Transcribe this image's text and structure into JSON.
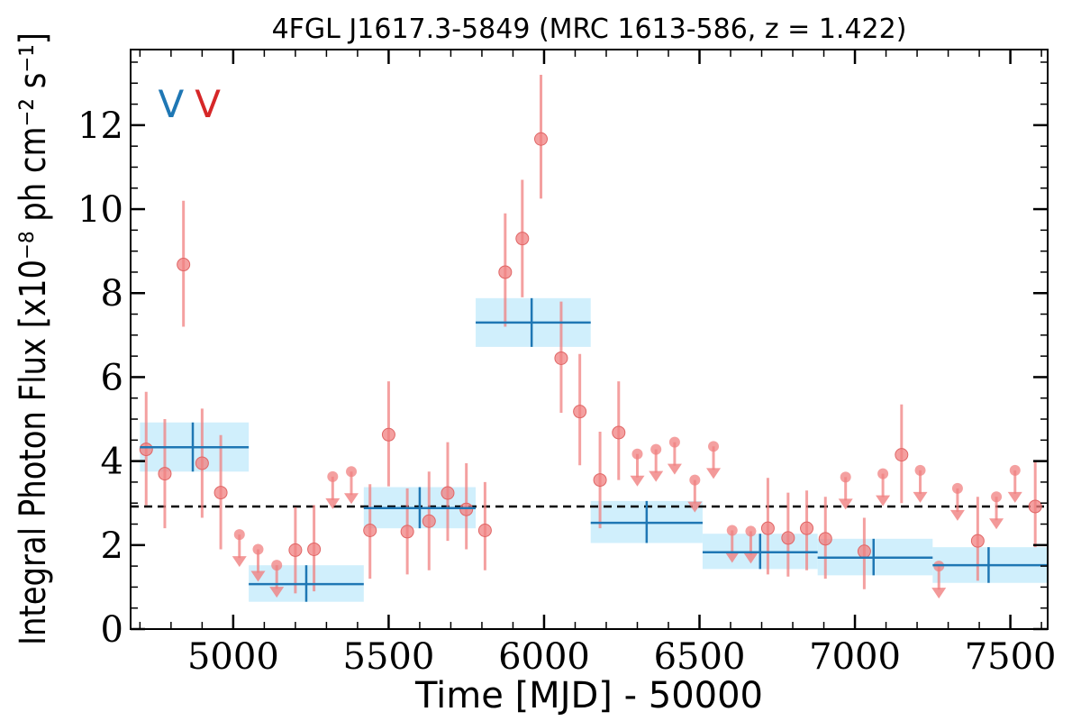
{
  "chart_data": {
    "type": "scatter",
    "title": "4FGL J1617.3-5849 (MRC 1613-586, z = 1.422)",
    "xlabel": "Time [MJD] - 50000",
    "ylabel": "Integral Photon Flux [x10⁻⁸ ph cm⁻² s⁻¹]",
    "xlim": [
      4670,
      7620
    ],
    "ylim": [
      0,
      13.8
    ],
    "xticks": [
      5000,
      5500,
      6000,
      6500,
      7000,
      7500
    ],
    "xtick_labels": [
      "5000",
      "5500",
      "6000",
      "6500",
      "7000",
      "7500"
    ],
    "yticks": [
      0,
      2,
      4,
      6,
      8,
      10,
      12
    ],
    "ytick_labels": [
      "0",
      "2",
      "4",
      "6",
      "8",
      "10",
      "12"
    ],
    "grid": false,
    "markers": [
      {
        "text": "V",
        "color": "#1f77b4",
        "x": 4800
      },
      {
        "text": "V",
        "color": "#d62728",
        "x": 4918
      }
    ],
    "reference_line": {
      "y": 2.92,
      "style": "dashed",
      "color": "#000000"
    },
    "series": [
      {
        "kind": "detections",
        "color": "#f08080",
        "points": [
          {
            "x": 4720,
            "y": 4.28,
            "lo": 2.95,
            "hi": 5.65
          },
          {
            "x": 4780,
            "y": 3.7,
            "lo": 2.4,
            "hi": 5.0
          },
          {
            "x": 4840,
            "y": 8.68,
            "lo": 7.2,
            "hi": 10.2
          },
          {
            "x": 4900,
            "y": 3.95,
            "lo": 2.65,
            "hi": 5.25
          },
          {
            "x": 4960,
            "y": 3.25,
            "lo": 1.9,
            "hi": 4.62
          },
          {
            "x": 5200,
            "y": 1.88,
            "lo": 0.85,
            "hi": 2.9
          },
          {
            "x": 5260,
            "y": 1.9,
            "lo": 0.9,
            "hi": 2.95
          },
          {
            "x": 5440,
            "y": 2.35,
            "lo": 1.2,
            "hi": 3.45
          },
          {
            "x": 5500,
            "y": 4.63,
            "lo": 3.4,
            "hi": 5.9
          },
          {
            "x": 5560,
            "y": 2.32,
            "lo": 1.3,
            "hi": 3.35
          },
          {
            "x": 5630,
            "y": 2.57,
            "lo": 1.4,
            "hi": 3.75
          },
          {
            "x": 5690,
            "y": 3.24,
            "lo": 2.1,
            "hi": 4.45
          },
          {
            "x": 5750,
            "y": 2.85,
            "lo": 1.9,
            "hi": 3.95
          },
          {
            "x": 5810,
            "y": 2.35,
            "lo": 1.4,
            "hi": 3.5
          },
          {
            "x": 5875,
            "y": 8.5,
            "lo": 7.2,
            "hi": 9.9
          },
          {
            "x": 5930,
            "y": 9.3,
            "lo": 7.9,
            "hi": 10.7
          },
          {
            "x": 5990,
            "y": 11.67,
            "lo": 10.25,
            "hi": 13.2
          },
          {
            "x": 6055,
            "y": 6.45,
            "lo": 5.15,
            "hi": 7.8
          },
          {
            "x": 6115,
            "y": 5.18,
            "lo": 3.9,
            "hi": 6.55
          },
          {
            "x": 6180,
            "y": 3.55,
            "lo": 2.4,
            "hi": 4.7
          },
          {
            "x": 6240,
            "y": 4.68,
            "lo": 3.55,
            "hi": 5.9
          },
          {
            "x": 6720,
            "y": 2.4,
            "lo": 1.3,
            "hi": 3.6
          },
          {
            "x": 6785,
            "y": 2.17,
            "lo": 1.25,
            "hi": 3.25
          },
          {
            "x": 6845,
            "y": 2.4,
            "lo": 1.4,
            "hi": 3.3
          },
          {
            "x": 6905,
            "y": 2.15,
            "lo": 1.2,
            "hi": 3.15
          },
          {
            "x": 7030,
            "y": 1.85,
            "lo": 0.95,
            "hi": 2.65
          },
          {
            "x": 7150,
            "y": 4.15,
            "lo": 3.0,
            "hi": 5.35
          },
          {
            "x": 7395,
            "y": 2.1,
            "lo": 1.15,
            "hi": 3.15
          },
          {
            "x": 7580,
            "y": 2.92,
            "lo": 1.95,
            "hi": 4.0
          }
        ]
      },
      {
        "kind": "upper_limits",
        "color": "#f08080",
        "points": [
          {
            "x": 5020,
            "y": 2.25
          },
          {
            "x": 5080,
            "y": 1.9
          },
          {
            "x": 5140,
            "y": 1.52
          },
          {
            "x": 5320,
            "y": 3.63
          },
          {
            "x": 5380,
            "y": 3.75
          },
          {
            "x": 6300,
            "y": 4.17
          },
          {
            "x": 6360,
            "y": 4.28
          },
          {
            "x": 6420,
            "y": 4.45
          },
          {
            "x": 6485,
            "y": 3.55
          },
          {
            "x": 6545,
            "y": 4.35
          },
          {
            "x": 6605,
            "y": 2.35
          },
          {
            "x": 6665,
            "y": 2.33
          },
          {
            "x": 6970,
            "y": 3.62
          },
          {
            "x": 7090,
            "y": 3.7
          },
          {
            "x": 7210,
            "y": 3.78
          },
          {
            "x": 7270,
            "y": 1.5
          },
          {
            "x": 7330,
            "y": 3.35
          },
          {
            "x": 7455,
            "y": 3.15
          },
          {
            "x": 7515,
            "y": 3.78
          }
        ]
      },
      {
        "kind": "bayesian_blocks",
        "color": "#1f77b4",
        "fill": "#cdeefc",
        "blocks": [
          {
            "x0": 4700,
            "x1": 5050,
            "y": 4.33,
            "lo": 3.75,
            "hi": 4.92,
            "xc": 4870
          },
          {
            "x0": 5050,
            "x1": 5420,
            "y": 1.07,
            "lo": 0.65,
            "hi": 1.52,
            "xc": 5235
          },
          {
            "x0": 5420,
            "x1": 5780,
            "y": 2.88,
            "lo": 2.4,
            "hi": 3.38,
            "xc": 5600
          },
          {
            "x0": 5780,
            "x1": 6150,
            "y": 7.3,
            "lo": 6.72,
            "hi": 7.88,
            "xc": 5960
          },
          {
            "x0": 6150,
            "x1": 6510,
            "y": 2.53,
            "lo": 2.05,
            "hi": 3.05,
            "xc": 6330
          },
          {
            "x0": 6510,
            "x1": 6880,
            "y": 1.83,
            "lo": 1.43,
            "hi": 2.27,
            "xc": 6695
          },
          {
            "x0": 6880,
            "x1": 7250,
            "y": 1.7,
            "lo": 1.28,
            "hi": 2.15,
            "xc": 7060
          },
          {
            "x0": 7250,
            "x1": 7620,
            "y": 1.52,
            "lo": 1.1,
            "hi": 1.95,
            "xc": 7430
          }
        ]
      }
    ]
  }
}
